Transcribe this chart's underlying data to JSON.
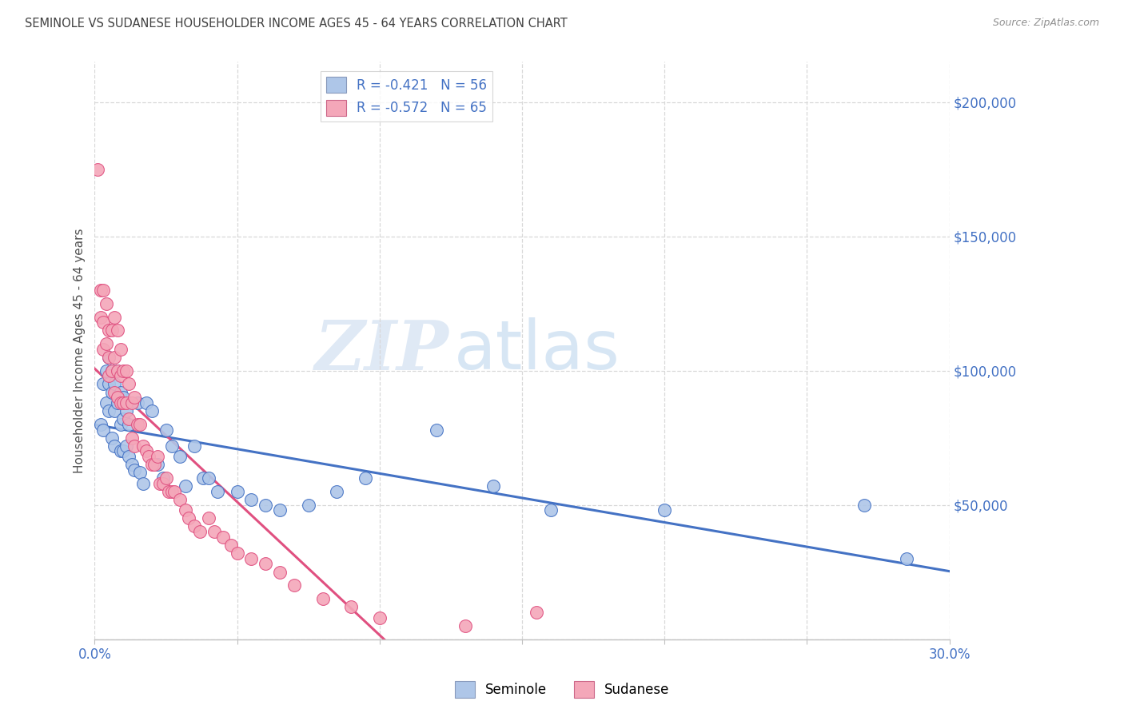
{
  "title": "SEMINOLE VS SUDANESE HOUSEHOLDER INCOME AGES 45 - 64 YEARS CORRELATION CHART",
  "source": "Source: ZipAtlas.com",
  "ylabel": "Householder Income Ages 45 - 64 years",
  "xlim": [
    0.0,
    0.3
  ],
  "ylim": [
    0,
    215000
  ],
  "yticks": [
    0,
    50000,
    100000,
    150000,
    200000
  ],
  "ytick_labels": [
    "",
    "$50,000",
    "$100,000",
    "$150,000",
    "$200,000"
  ],
  "xticks": [
    0.0,
    0.05,
    0.1,
    0.15,
    0.2,
    0.25,
    0.3
  ],
  "xtick_labels": [
    "0.0%",
    "",
    "",
    "",
    "",
    "",
    "30.0%"
  ],
  "seminole_R": -0.421,
  "seminole_N": 56,
  "sudanese_R": -0.572,
  "sudanese_N": 65,
  "seminole_color": "#aec6e8",
  "sudanese_color": "#f4a7b9",
  "seminole_line_color": "#4472c4",
  "sudanese_line_color": "#e05080",
  "title_color": "#404040",
  "label_color": "#4472c4",
  "grid_color": "#d8d8d8",
  "watermark_zip": "ZIP",
  "watermark_atlas": "atlas",
  "seminole_x": [
    0.002,
    0.003,
    0.003,
    0.004,
    0.004,
    0.005,
    0.005,
    0.005,
    0.006,
    0.006,
    0.006,
    0.007,
    0.007,
    0.007,
    0.008,
    0.008,
    0.009,
    0.009,
    0.009,
    0.01,
    0.01,
    0.01,
    0.011,
    0.011,
    0.012,
    0.012,
    0.013,
    0.014,
    0.015,
    0.016,
    0.017,
    0.018,
    0.02,
    0.022,
    0.024,
    0.025,
    0.027,
    0.03,
    0.032,
    0.035,
    0.038,
    0.04,
    0.043,
    0.05,
    0.055,
    0.06,
    0.065,
    0.075,
    0.085,
    0.095,
    0.12,
    0.14,
    0.16,
    0.2,
    0.27,
    0.285
  ],
  "seminole_y": [
    80000,
    95000,
    78000,
    100000,
    88000,
    105000,
    95000,
    85000,
    100000,
    92000,
    75000,
    95000,
    85000,
    72000,
    100000,
    88000,
    92000,
    80000,
    70000,
    90000,
    82000,
    70000,
    85000,
    72000,
    80000,
    68000,
    65000,
    63000,
    88000,
    62000,
    58000,
    88000,
    85000,
    65000,
    60000,
    78000,
    72000,
    68000,
    57000,
    72000,
    60000,
    60000,
    55000,
    55000,
    52000,
    50000,
    48000,
    50000,
    55000,
    60000,
    78000,
    57000,
    48000,
    48000,
    50000,
    30000
  ],
  "sudanese_x": [
    0.001,
    0.002,
    0.002,
    0.003,
    0.003,
    0.003,
    0.004,
    0.004,
    0.005,
    0.005,
    0.005,
    0.006,
    0.006,
    0.007,
    0.007,
    0.007,
    0.008,
    0.008,
    0.008,
    0.009,
    0.009,
    0.009,
    0.01,
    0.01,
    0.011,
    0.011,
    0.012,
    0.012,
    0.013,
    0.013,
    0.014,
    0.014,
    0.015,
    0.016,
    0.017,
    0.018,
    0.019,
    0.02,
    0.021,
    0.022,
    0.023,
    0.024,
    0.025,
    0.026,
    0.027,
    0.028,
    0.03,
    0.032,
    0.033,
    0.035,
    0.037,
    0.04,
    0.042,
    0.045,
    0.048,
    0.05,
    0.055,
    0.06,
    0.065,
    0.07,
    0.08,
    0.09,
    0.1,
    0.13,
    0.155
  ],
  "sudanese_y": [
    175000,
    130000,
    120000,
    130000,
    118000,
    108000,
    125000,
    110000,
    115000,
    105000,
    98000,
    115000,
    100000,
    120000,
    105000,
    92000,
    115000,
    100000,
    90000,
    108000,
    98000,
    88000,
    100000,
    88000,
    100000,
    88000,
    95000,
    82000,
    88000,
    75000,
    90000,
    72000,
    80000,
    80000,
    72000,
    70000,
    68000,
    65000,
    65000,
    68000,
    58000,
    58000,
    60000,
    55000,
    55000,
    55000,
    52000,
    48000,
    45000,
    42000,
    40000,
    45000,
    40000,
    38000,
    35000,
    32000,
    30000,
    28000,
    25000,
    20000,
    15000,
    12000,
    8000,
    5000,
    10000
  ]
}
